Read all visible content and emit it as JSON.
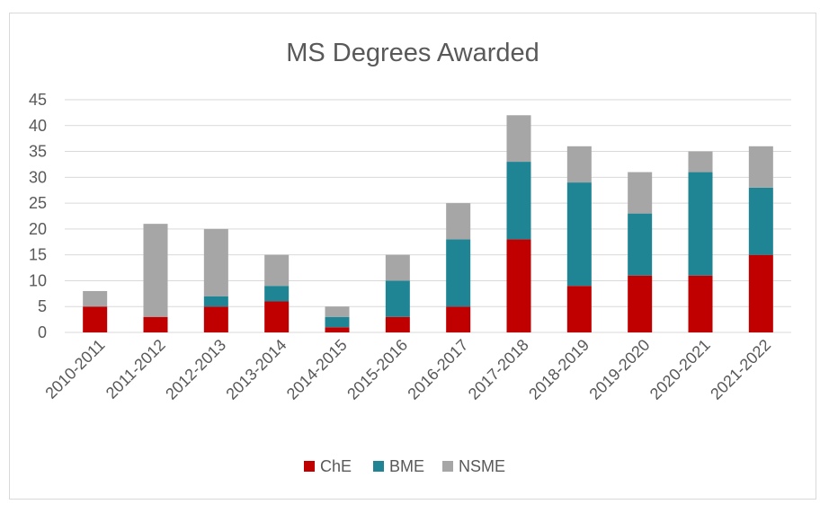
{
  "chart_data": {
    "type": "bar",
    "stacked": true,
    "title": "MS Degrees Awarded",
    "xlabel": "",
    "ylabel": "",
    "categories": [
      "2010-2011",
      "2011-2012",
      "2012-2013",
      "2013-2014",
      "2014-2015",
      "2015-2016",
      "2016-2017",
      "2017-2018",
      "2018-2019",
      "2019-2020",
      "2020-2021",
      "2021-2022"
    ],
    "series": [
      {
        "name": "ChE",
        "color": "#c00000",
        "values": [
          5,
          3,
          5,
          6,
          1,
          3,
          5,
          18,
          9,
          11,
          11,
          15
        ]
      },
      {
        "name": "BME",
        "color": "#1f8494",
        "values": [
          0,
          0,
          2,
          3,
          2,
          7,
          13,
          15,
          20,
          12,
          20,
          13
        ]
      },
      {
        "name": "NSME",
        "color": "#a6a6a6",
        "values": [
          3,
          18,
          13,
          6,
          2,
          5,
          7,
          9,
          7,
          8,
          4,
          8
        ]
      }
    ],
    "ylim": [
      0,
      45
    ],
    "yticks": [
      0,
      5,
      10,
      15,
      20,
      25,
      30,
      35,
      40,
      45
    ],
    "grid": true,
    "legend": "bottom"
  }
}
